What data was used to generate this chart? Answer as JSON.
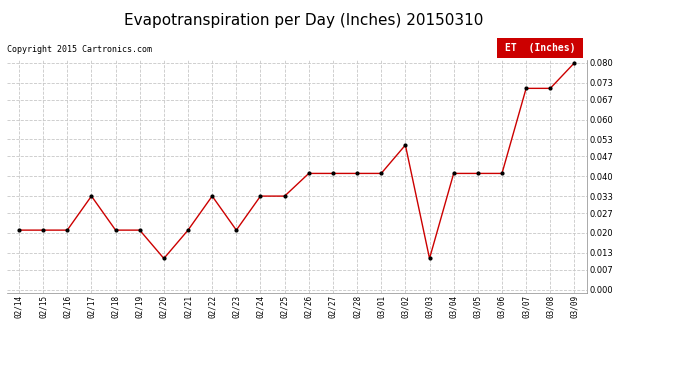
{
  "title": "Evapotranspiration per Day (Inches) 20150310",
  "copyright": "Copyright 2015 Cartronics.com",
  "legend_label": "ET  (Inches)",
  "x_labels": [
    "02/14",
    "02/15",
    "02/16",
    "02/17",
    "02/18",
    "02/19",
    "02/20",
    "02/21",
    "02/22",
    "02/23",
    "02/24",
    "02/25",
    "02/26",
    "02/27",
    "02/28",
    "03/01",
    "03/02",
    "03/03",
    "03/04",
    "03/05",
    "03/06",
    "03/07",
    "03/08",
    "03/09"
  ],
  "y_values": [
    0.021,
    0.021,
    0.021,
    0.033,
    0.021,
    0.021,
    0.011,
    0.021,
    0.033,
    0.021,
    0.033,
    0.033,
    0.041,
    0.041,
    0.041,
    0.041,
    0.051,
    0.011,
    0.041,
    0.041,
    0.041,
    0.071,
    0.071,
    0.08
  ],
  "line_color": "#cc0000",
  "marker_color": "#000000",
  "bg_color": "#ffffff",
  "grid_color": "#c8c8c8",
  "ylim_min": 0.0,
  "ylim_max": 0.08,
  "yticks": [
    0.0,
    0.007,
    0.013,
    0.02,
    0.027,
    0.033,
    0.04,
    0.047,
    0.053,
    0.06,
    0.067,
    0.073,
    0.08
  ],
  "title_fontsize": 11,
  "copyright_fontsize": 6,
  "legend_bg": "#cc0000",
  "legend_text_color": "#ffffff",
  "legend_fontsize": 7
}
